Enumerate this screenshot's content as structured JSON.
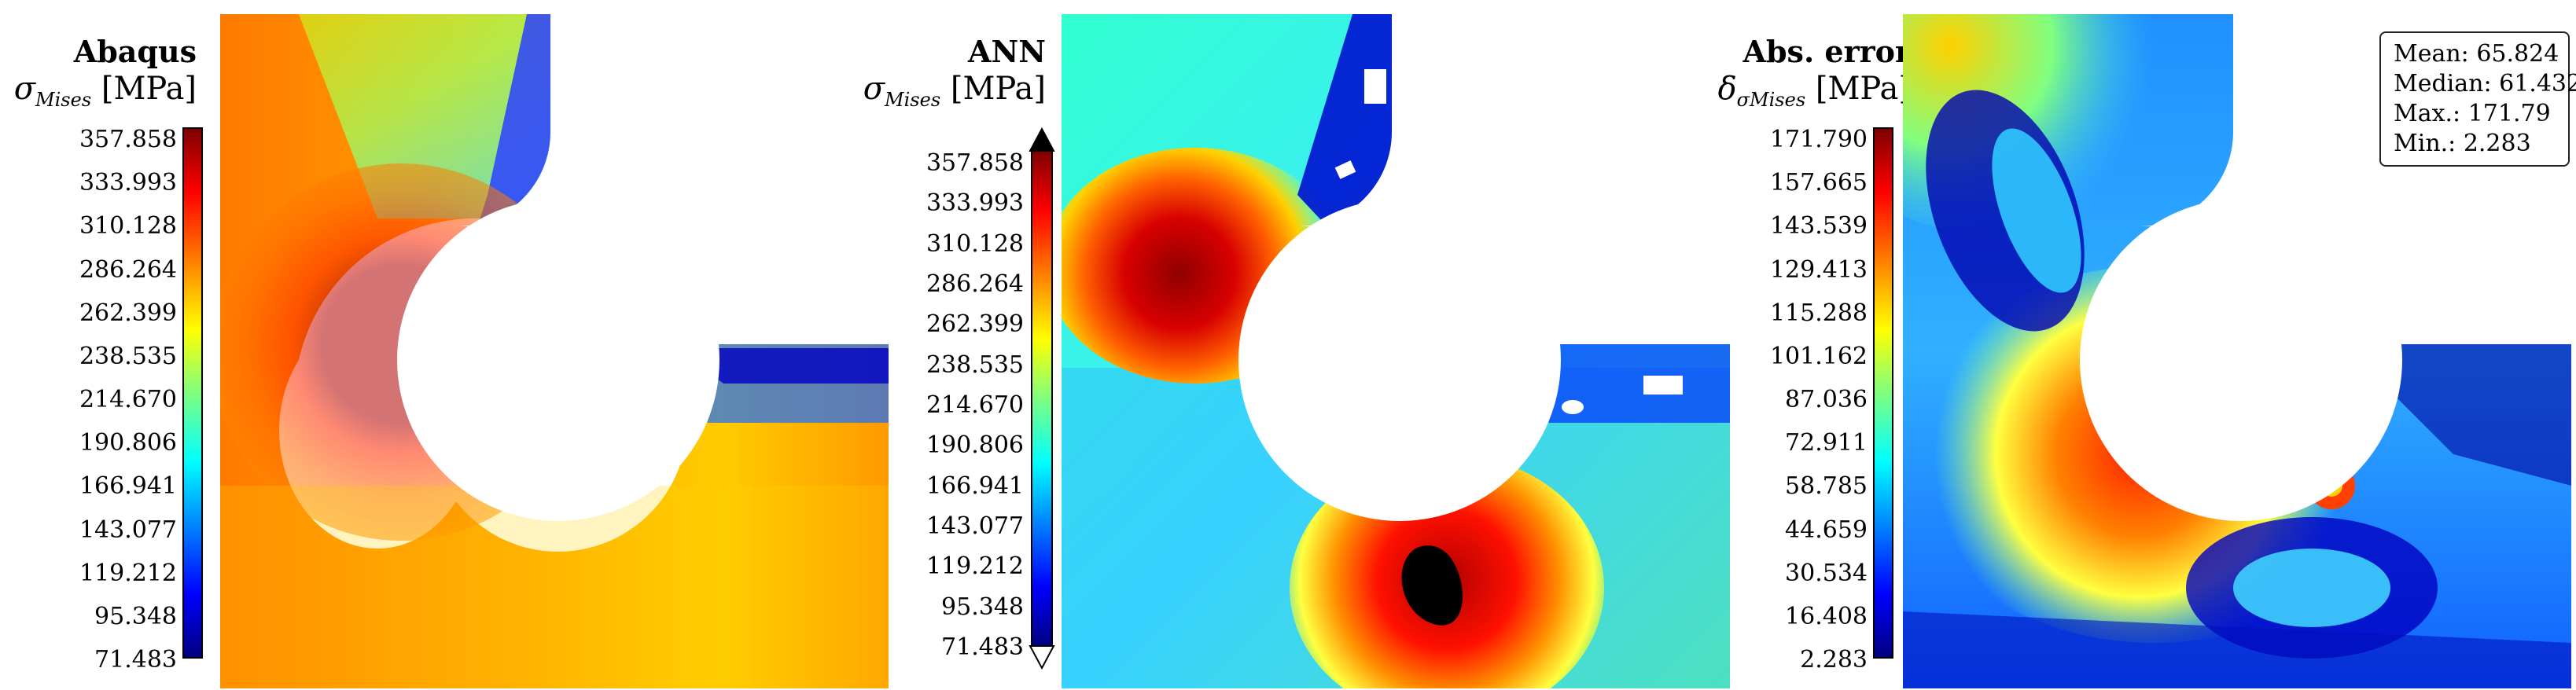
{
  "panels": [
    {
      "title": "Abaqus",
      "symbol": "σ",
      "sub": "Mises",
      "unit": "[MPa]",
      "ticks": [
        "357.858",
        "333.993",
        "310.128",
        "286.264",
        "262.399",
        "238.535",
        "214.670",
        "190.806",
        "166.941",
        "143.077",
        "119.212",
        "95.348",
        "71.483"
      ],
      "cmap": "jet"
    },
    {
      "title": "ANN",
      "symbol": "σ",
      "sub": "Mises",
      "unit": "[MPa]",
      "ticks": [
        "357.858",
        "333.993",
        "310.128",
        "286.264",
        "262.399",
        "238.535",
        "214.670",
        "190.806",
        "166.941",
        "143.077",
        "119.212",
        "95.348",
        "71.483"
      ],
      "cmap": "jet-extended"
    },
    {
      "title": "Abs. error",
      "symbol": "δ",
      "sub": "σMises",
      "unit": "[MPa]",
      "ticks": [
        "171.790",
        "157.665",
        "143.539",
        "129.413",
        "115.288",
        "101.162",
        "87.036",
        "72.911",
        "58.785",
        "44.659",
        "30.534",
        "16.408",
        "2.283"
      ],
      "cmap": "jet"
    }
  ],
  "stats": {
    "mean": "Mean: 65.824",
    "median": "Median: 61.432",
    "max": "Max.: 171.79",
    "min": "Min.: 2.283"
  },
  "colors": {
    "jet_dark_blue": "#00007f",
    "jet_blue": "#0000ff",
    "jet_cyan": "#00ffff",
    "jet_yellow": "#ffff00",
    "jet_red": "#ff0000",
    "jet_dark_red": "#7f0000"
  }
}
